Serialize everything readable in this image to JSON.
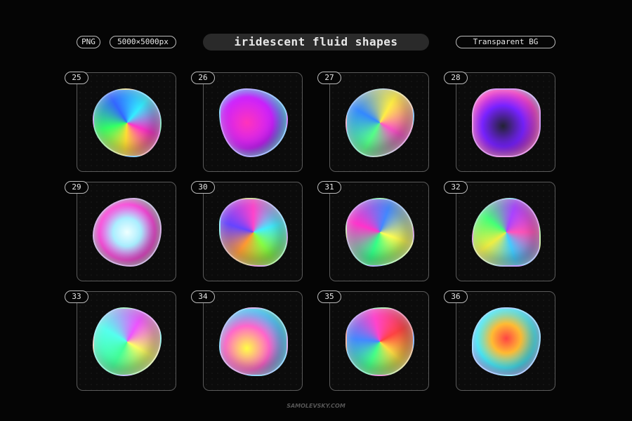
{
  "header": {
    "format_badge": "PNG",
    "size_badge": "5000×5000px",
    "title": "iridescent fluid shapes",
    "bg_badge": "Transparent BG"
  },
  "cards": [
    {
      "number": "25"
    },
    {
      "number": "26"
    },
    {
      "number": "27"
    },
    {
      "number": "28"
    },
    {
      "number": "29"
    },
    {
      "number": "30"
    },
    {
      "number": "31"
    },
    {
      "number": "32"
    },
    {
      "number": "33"
    },
    {
      "number": "34"
    },
    {
      "number": "35"
    },
    {
      "number": "36"
    }
  ],
  "footer": {
    "brand": "SAMOLEVSKY.COM"
  }
}
